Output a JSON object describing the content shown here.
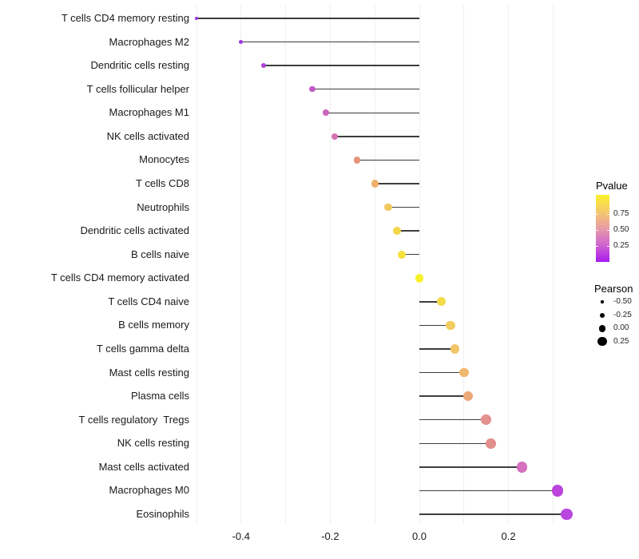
{
  "chart_data": {
    "type": "scatter",
    "subtype": "horizontal-lollipop",
    "title": "",
    "xlabel": "",
    "ylabel": "",
    "xlim": [
      -0.55,
      0.35
    ],
    "grid": "vertical gridlines every 0.1 from -0.5 to 0.3, no horizontal gridlines",
    "legend_position": "right",
    "categories": [
      "T cells CD4 memory resting",
      "Macrophages M2",
      "Dendritic cells resting",
      "T cells follicular helper",
      "Macrophages M1",
      "NK cells activated",
      "Monocytes",
      "T cells CD8",
      "Neutrophils",
      "Dendritic cells activated",
      "B cells naive",
      "T cells CD4 memory activated",
      "T cells CD4 naive",
      "B cells memory",
      "T cells gamma delta",
      "Mast cells resting",
      "Plasma cells",
      "T cells regulatory  Tregs",
      "NK cells resting",
      "Mast cells activated",
      "Macrophages M0",
      "Eosinophils"
    ],
    "series": [
      {
        "name": "Pearson",
        "values": [
          -0.5,
          -0.4,
          -0.35,
          -0.24,
          -0.21,
          -0.19,
          -0.14,
          -0.1,
          -0.07,
          -0.05,
          -0.04,
          0.0,
          0.05,
          0.07,
          0.08,
          0.1,
          0.11,
          0.15,
          0.16,
          0.23,
          0.31,
          0.33
        ]
      }
    ],
    "point_colors": [
      "#9933E6",
      "#A236E0",
      "#AC3FD6",
      "#C158C6",
      "#CB64BC",
      "#D372B0",
      "#E6937B",
      "#EFAF68",
      "#F2C75B",
      "#F4D64A",
      "#F4E13C",
      "#F8F02A",
      "#F3DB4A",
      "#F2CC5E",
      "#F1C568",
      "#EFB76F",
      "#ECA878",
      "#E4908D",
      "#E28E8C",
      "#D570BE",
      "#BC44DC",
      "#B846DF"
    ],
    "x_ticks": [
      {
        "label": "-0.4",
        "value": -0.4
      },
      {
        "label": "-0.2",
        "value": -0.2
      },
      {
        "label": "0.0",
        "value": 0.0
      },
      {
        "label": "0.2",
        "value": 0.2
      }
    ],
    "gridline_values": [
      -0.5,
      -0.4,
      -0.3,
      -0.2,
      -0.1,
      0.0,
      0.1,
      0.2,
      0.3
    ]
  },
  "legend": {
    "pvalue": {
      "title": "Pvalue",
      "ticks": [
        {
          "label": "0.75",
          "value": 0.75
        },
        {
          "label": "0.50",
          "value": 0.5
        },
        {
          "label": "0.25",
          "value": 0.25
        }
      ],
      "gradient": [
        "#F9F12B",
        "#F5C96B",
        "#E79BA6",
        "#CF63D0",
        "#A81AEE"
      ]
    },
    "pearson": {
      "title": "Pearson",
      "entries": [
        {
          "label": "-0.50",
          "value": -0.5
        },
        {
          "label": "-0.25",
          "value": -0.25
        },
        {
          "label": "0.00",
          "value": 0.0
        },
        {
          "label": "0.25",
          "value": 0.25
        }
      ]
    }
  },
  "colors": {
    "background": "#ffffff",
    "stem": "#3d3d3d",
    "gridline": "#f0f0f0",
    "axis_text": "#1a1a1a",
    "legend_dot": "#000000"
  }
}
